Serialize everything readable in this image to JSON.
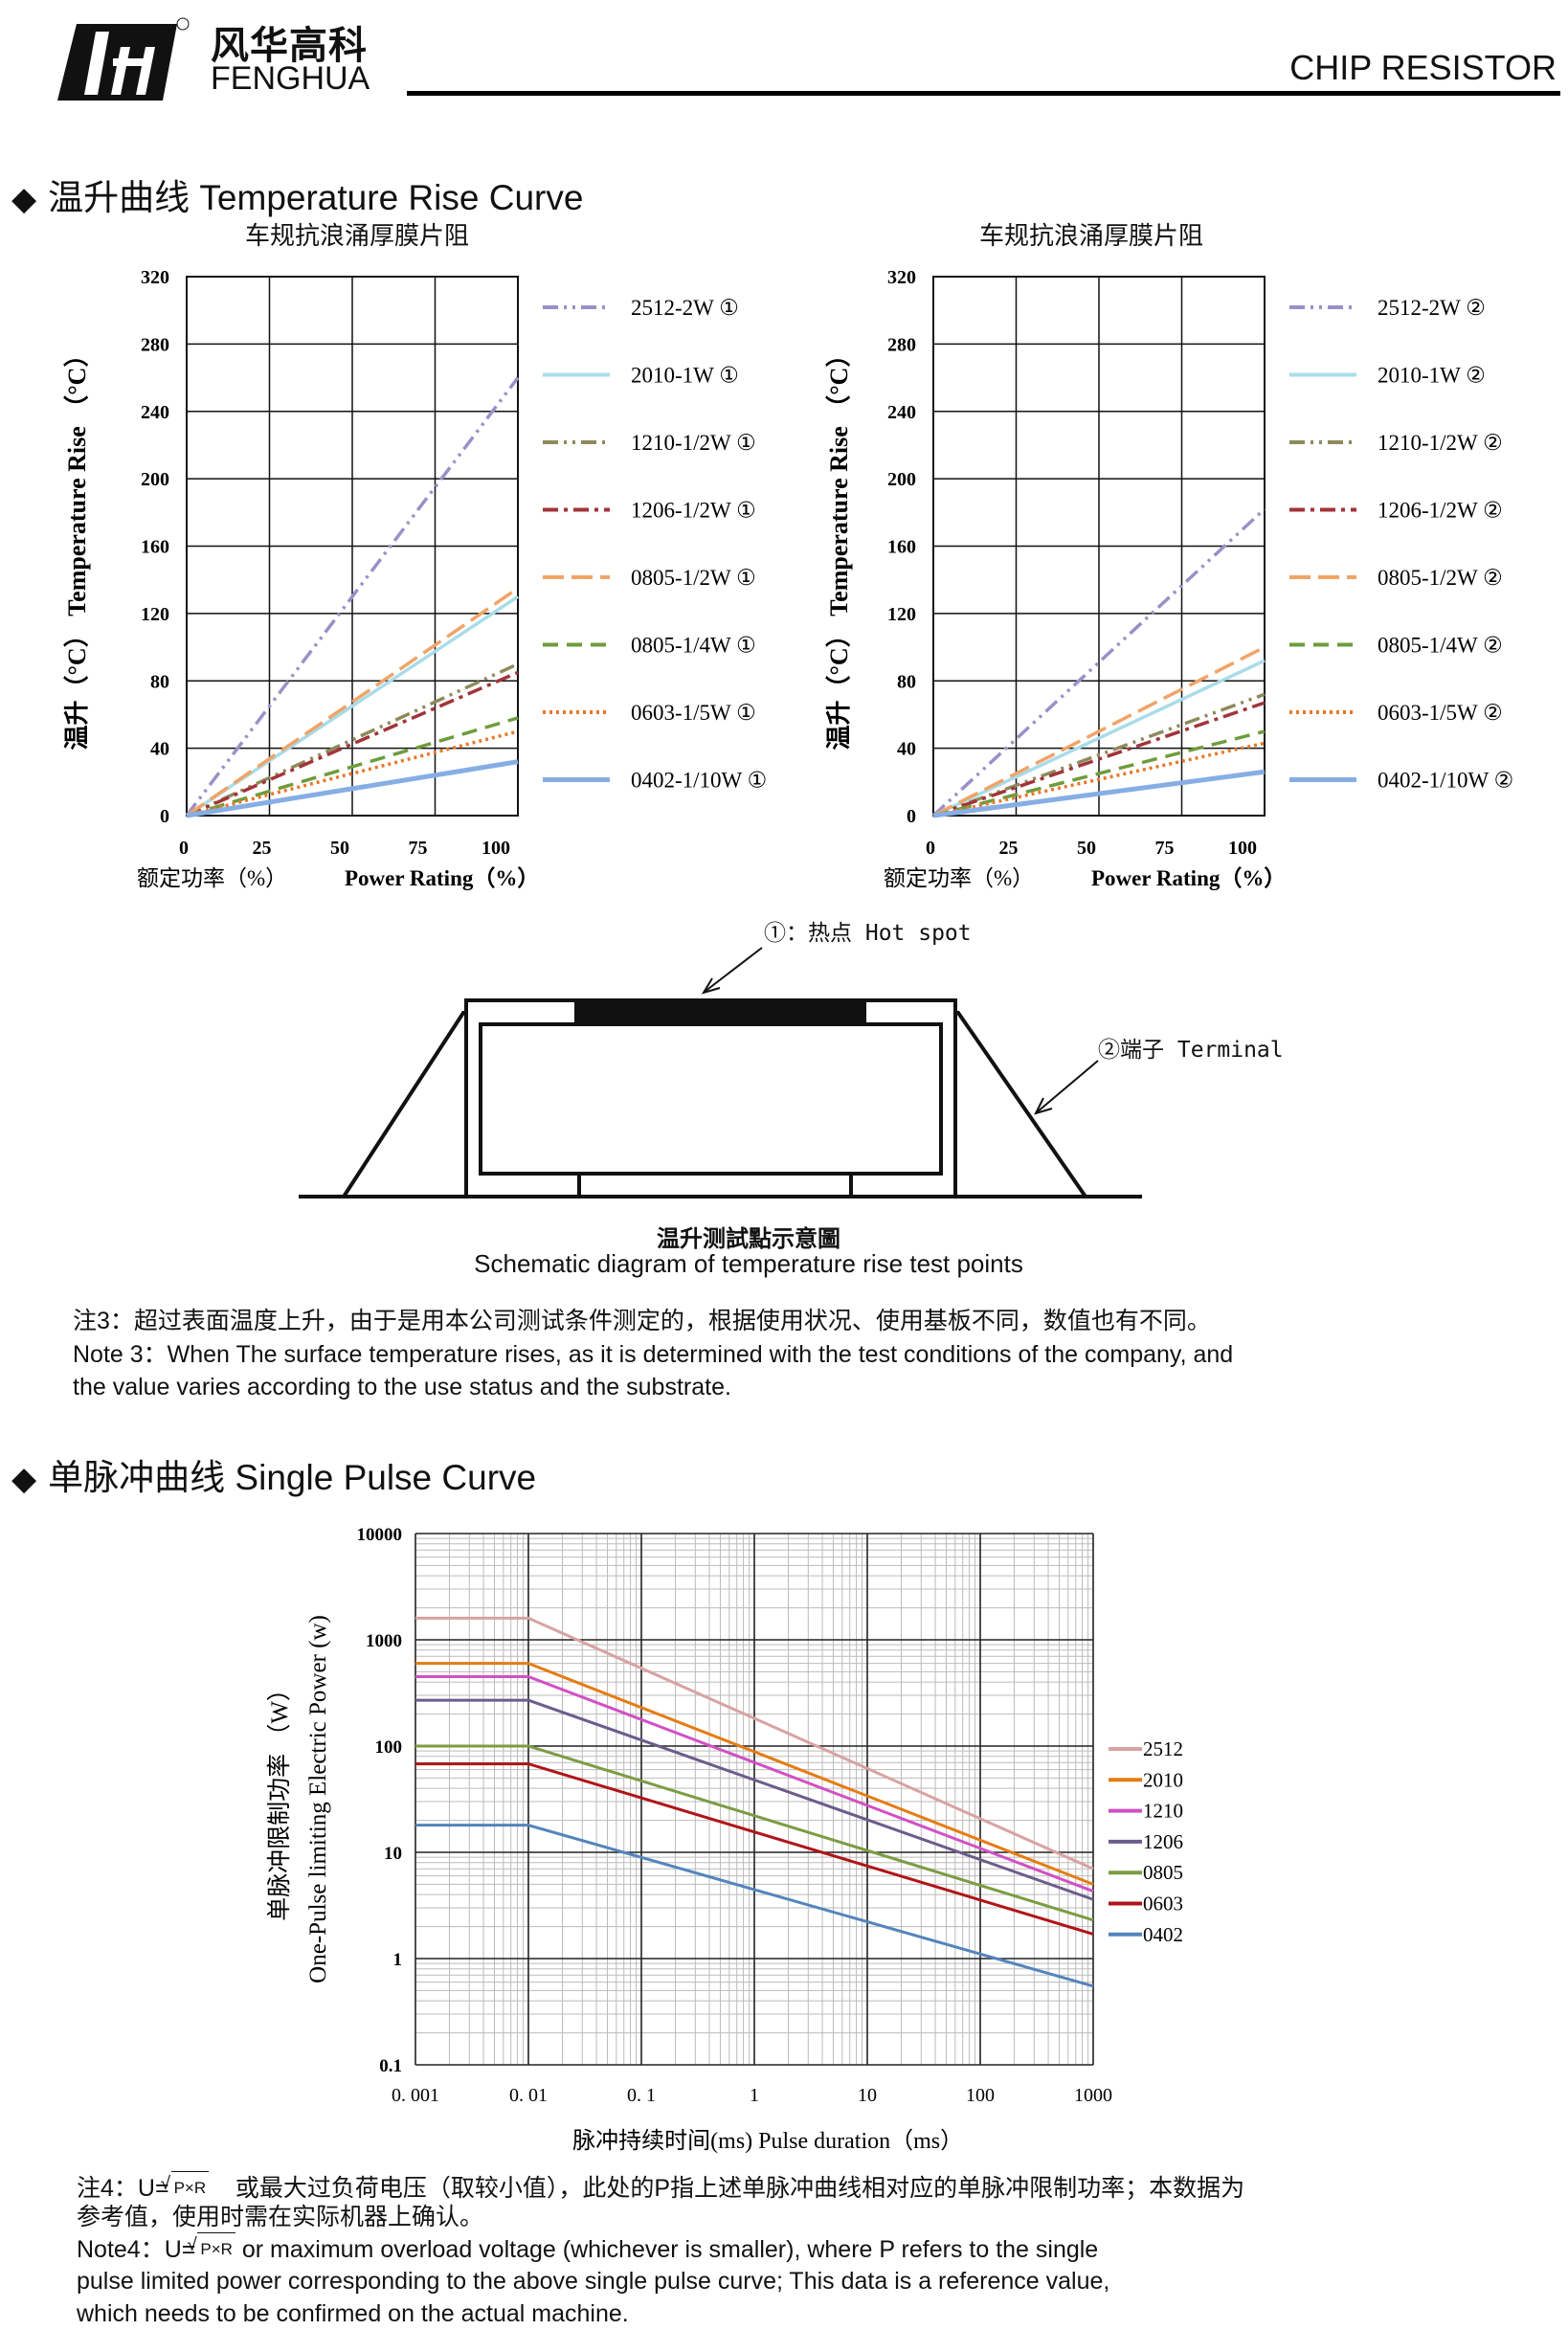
{
  "header": {
    "logo_cn": "风华高科",
    "logo_en": "FENGHUA",
    "doc_title": "CHIP RESISTOR"
  },
  "section1": {
    "title": "温升曲线 Temperature Rise Curve",
    "hot_spot_label": "①：热点  Hot spot",
    "terminal_label": "②端子 Terminal",
    "caption_cn": "温升测試點示意圖",
    "caption_en": "Schematic diagram of temperature rise test points"
  },
  "note3": {
    "cn": "注3：超过表面温度上升，由于是用本公司测试条件测定的，根据使用状况、使用基板不同，数值也有不同。",
    "en_lines": [
      "Note 3：When The surface temperature rises, as it is determined with the test conditions of the company, and",
      "the value varies according to the use status and the substrate."
    ]
  },
  "section2": {
    "title": "单脉冲曲线 Single Pulse Curve"
  },
  "note4": {
    "cn_prefix": "注4：U=",
    "formula": "P×R",
    "cn_line1_rest": "或最大过负荷电压（取较小值），此处的P指上述单脉冲曲线相对应的单脉冲限制功率；本数据为",
    "cn_line2": "参考值，使用时需在实际机器上确认。",
    "en_prefix": "Note4：U=",
    "en_line1_rest": "or maximum overload voltage (whichever is smaller), where P refers to the single",
    "en_line2": "pulse limited power corresponding to the above single pulse curve; This data is a reference value,",
    "en_line3": "which needs to be confirmed on the actual machine."
  },
  "chart_data": [
    {
      "type": "line",
      "title": "车规抗浪涌厚膜片阻",
      "ylabel": "温升（°C） Temperature Rise （°C）",
      "xlabel_cn": "额定功率（%）",
      "xlabel_en": "Power Rating（%）",
      "xlim": [
        0,
        100
      ],
      "ylim": [
        0,
        320
      ],
      "xticks": [
        "0",
        "25",
        "50",
        "75",
        "100"
      ],
      "yticks": [
        "0",
        "40",
        "80",
        "120",
        "160",
        "200",
        "240",
        "280",
        "320"
      ],
      "grid": true,
      "legend": "right",
      "x": [
        0,
        100
      ],
      "series": [
        {
          "name": "2512-2W ①",
          "values": [
            0,
            260
          ],
          "color": "#9a90c8",
          "style": "dash-dot-dot"
        },
        {
          "name": "2010-1W ①",
          "values": [
            0,
            130
          ],
          "color": "#a9dce8",
          "style": "solid"
        },
        {
          "name": "1210-1/2W ①",
          "values": [
            0,
            90
          ],
          "color": "#8e8a5c",
          "style": "dash-dot-dot"
        },
        {
          "name": "1206-1/2W ①",
          "values": [
            0,
            85
          ],
          "color": "#a2343a",
          "style": "dash-dot"
        },
        {
          "name": "0805-1/2W ①",
          "values": [
            0,
            135
          ],
          "color": "#f0a468",
          "style": "long-dash"
        },
        {
          "name": "0805-1/4W ①",
          "values": [
            0,
            58
          ],
          "color": "#6e9c3c",
          "style": "dash"
        },
        {
          "name": "0603-1/5W ①",
          "values": [
            0,
            50
          ],
          "color": "#e8782a",
          "style": "dot"
        },
        {
          "name": "0402-1/10W ①",
          "values": [
            0,
            32
          ],
          "color": "#86aee4",
          "style": "solid"
        }
      ]
    },
    {
      "type": "line",
      "title": "车规抗浪涌厚膜片阻",
      "ylabel": "温升（°C） Temperature Rise （°C）",
      "xlabel_cn": "额定功率（%）",
      "xlabel_en": "Power Rating（%）",
      "xlim": [
        0,
        100
      ],
      "ylim": [
        0,
        320
      ],
      "xticks": [
        "0",
        "25",
        "50",
        "75",
        "100"
      ],
      "yticks": [
        "0",
        "40",
        "80",
        "120",
        "160",
        "200",
        "240",
        "280",
        "320"
      ],
      "grid": true,
      "legend": "right",
      "x": [
        0,
        100
      ],
      "series": [
        {
          "name": "2512-2W ②",
          "values": [
            0,
            182
          ],
          "color": "#9a90c8",
          "style": "dash-dot-dot"
        },
        {
          "name": "2010-1W ②",
          "values": [
            0,
            92
          ],
          "color": "#a9dce8",
          "style": "solid"
        },
        {
          "name": "1210-1/2W ②",
          "values": [
            0,
            72
          ],
          "color": "#8e8a5c",
          "style": "dash-dot-dot"
        },
        {
          "name": "1206-1/2W ②",
          "values": [
            0,
            67
          ],
          "color": "#a2343a",
          "style": "dash-dot"
        },
        {
          "name": "0805-1/2W ②",
          "values": [
            0,
            100
          ],
          "color": "#f0a468",
          "style": "long-dash"
        },
        {
          "name": "0805-1/4W ②",
          "values": [
            0,
            50
          ],
          "color": "#6e9c3c",
          "style": "dash"
        },
        {
          "name": "0603-1/5W ②",
          "values": [
            0,
            43
          ],
          "color": "#e8782a",
          "style": "dot"
        },
        {
          "name": "0402-1/10W ②",
          "values": [
            0,
            26
          ],
          "color": "#86aee4",
          "style": "solid"
        }
      ]
    },
    {
      "type": "line",
      "ylabel_cn": "单脉冲限制功率 （W）",
      "ylabel_en": "One-Pulse limiting Electric Power (w)",
      "xlabel": "脉冲持续时间(ms)  Pulse duration（ms）",
      "xscale": "log",
      "yscale": "log",
      "xlim": [
        0.001,
        1000
      ],
      "ylim": [
        0.1,
        10000
      ],
      "xticks": [
        "0. 001",
        "0. 01",
        "0. 1",
        "1",
        "10",
        "100",
        "1000"
      ],
      "yticks": [
        "0.1",
        "1",
        "10",
        "100",
        "1000",
        "10000"
      ],
      "grid": true,
      "legend": "right",
      "x": [
        0.001,
        0.01,
        1000
      ],
      "series": [
        {
          "name": "2512",
          "values": [
            1600,
            1600,
            7
          ],
          "color": "#d8a2a2"
        },
        {
          "name": "2010",
          "values": [
            600,
            600,
            5
          ],
          "color": "#e57c12"
        },
        {
          "name": "1210",
          "values": [
            450,
            450,
            4.3
          ],
          "color": "#d250c4"
        },
        {
          "name": "1206",
          "values": [
            270,
            270,
            3.6
          ],
          "color": "#6c5c8c"
        },
        {
          "name": "0805",
          "values": [
            100,
            100,
            2.3
          ],
          "color": "#7c9c42"
        },
        {
          "name": "0603",
          "values": [
            68,
            68,
            1.7
          ],
          "color": "#b01418"
        },
        {
          "name": "0402",
          "values": [
            18,
            18,
            0.55
          ],
          "color": "#5384bc"
        }
      ]
    }
  ]
}
